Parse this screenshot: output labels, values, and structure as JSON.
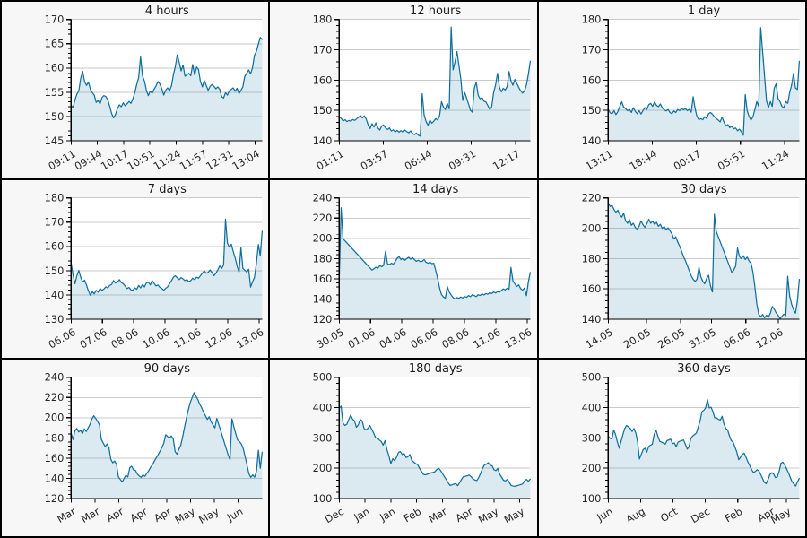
{
  "theme": {
    "page_bg": "#f7f7f7",
    "plot_bg": "#ffffff",
    "border_color": "#000000",
    "line_color": "#0f6f9e",
    "fill_color": "rgba(15,111,158,0.15)",
    "grid_color": "#cbcbcb",
    "tick_color": "#000000",
    "text_color": "#262626"
  },
  "chart_data": [
    {
      "type": "area",
      "title": "4 hours",
      "ylim": [
        145,
        170
      ],
      "ytick_step": 5,
      "grid": true,
      "legend": "none",
      "xticks": [
        {
          "label": "09:11",
          "pos": 0.0
        },
        {
          "label": "09:44",
          "pos": 0.1375
        },
        {
          "label": "10:17",
          "pos": 0.275
        },
        {
          "label": "10:51",
          "pos": 0.4125
        },
        {
          "label": "11:24",
          "pos": 0.55
        },
        {
          "label": "11:57",
          "pos": 0.6875
        },
        {
          "label": "12:31",
          "pos": 0.825
        },
        {
          "label": "13:04",
          "pos": 0.9625
        }
      ],
      "values": [
        152.3,
        151.8,
        153.4,
        154.6,
        155.3,
        157.9,
        159.3,
        157.2,
        156.4,
        157.1,
        155.6,
        154.9,
        154.4,
        152.9,
        153.3,
        152.6,
        153.9,
        154.3,
        154.1,
        153.4,
        152.1,
        150.6,
        149.7,
        150.4,
        151.6,
        152.4,
        152.0,
        152.8,
        152.2,
        152.6,
        153.1,
        152.7,
        153.6,
        154.9,
        156.6,
        158.0,
        162.3,
        158.4,
        157.3,
        155.4,
        154.3,
        155.2,
        154.8,
        155.6,
        156.3,
        157.2,
        156.7,
        155.7,
        154.4,
        155.4,
        155.9,
        155.3,
        156.3,
        158.6,
        160.3,
        162.7,
        161.2,
        159.4,
        160.6,
        158.3,
        158.6,
        158.9,
        158.4,
        160.7,
        158.6,
        160.2,
        159.7,
        157.2,
        156.1,
        157.4,
        156.4,
        155.4,
        156.2,
        156.6,
        156.2,
        155.7,
        156.1,
        155.6,
        154.1,
        153.8,
        154.9,
        154.4,
        155.3,
        155.6,
        155.9,
        155.2,
        155.8,
        154.7,
        155.4,
        156.1,
        158.3,
        158.9,
        159.6,
        158.8,
        160.1,
        162.6,
        163.4,
        164.9,
        166.3,
        165.9
      ]
    },
    {
      "type": "area",
      "title": "12 hours",
      "ylim": [
        140,
        180
      ],
      "ytick_step": 10,
      "grid": true,
      "legend": "none",
      "xticks": [
        {
          "label": "01:11",
          "pos": 0.0
        },
        {
          "label": "03:57",
          "pos": 0.2306
        },
        {
          "label": "06:44",
          "pos": 0.4611
        },
        {
          "label": "09:31",
          "pos": 0.6917
        },
        {
          "label": "12:17",
          "pos": 0.9222
        }
      ],
      "values": [
        148.0,
        147.4,
        146.5,
        146.9,
        146.3,
        146.7,
        146.4,
        147.0,
        146.7,
        147.2,
        147.7,
        148.3,
        147.5,
        148.2,
        147.1,
        145.2,
        144.0,
        145.6,
        144.5,
        145.9,
        144.2,
        143.5,
        144.8,
        145.2,
        144.2,
        143.7,
        144.2,
        143.2,
        143.6,
        142.9,
        143.4,
        142.8,
        143.3,
        142.8,
        143.5,
        143.0,
        142.6,
        143.2,
        142.4,
        142.0,
        142.5,
        141.8,
        141.5,
        155.5,
        148.5,
        146.3,
        145.1,
        146.8,
        145.8,
        146.4,
        147.3,
        146.8,
        148.2,
        152.9,
        151.1,
        150.3,
        152.3,
        150.5,
        177.5,
        163.4,
        165.9,
        169.4,
        165.0,
        160.4,
        153.3,
        155.9,
        154.1,
        152.1,
        150.0,
        149.4,
        157.3,
        159.3,
        155.0,
        153.8,
        154.2,
        153.0,
        152.8,
        151.6,
        150.3,
        151.2,
        155.9,
        158.3,
        162.2,
        157.7,
        156.1,
        157.3,
        156.7,
        157.9,
        162.8,
        159.7,
        158.3,
        160.2,
        158.9,
        157.6,
        156.5,
        155.7,
        156.4,
        158.4,
        161.9,
        166.2
      ]
    },
    {
      "type": "area",
      "title": "1 day",
      "ylim": [
        140,
        180
      ],
      "ytick_step": 10,
      "grid": true,
      "legend": "none",
      "xticks": [
        {
          "label": "13:11",
          "pos": 0.0
        },
        {
          "label": "18:44",
          "pos": 0.2306
        },
        {
          "label": "00:17",
          "pos": 0.4611
        },
        {
          "label": "05:51",
          "pos": 0.6917
        },
        {
          "label": "11:24",
          "pos": 0.9222
        }
      ],
      "values": [
        150.4,
        149.2,
        148.9,
        149.9,
        148.6,
        149.6,
        151.3,
        152.8,
        151.1,
        150.6,
        149.9,
        150.3,
        149.3,
        150.9,
        149.7,
        148.9,
        149.9,
        148.8,
        149.9,
        150.9,
        150.3,
        151.9,
        152.3,
        151.3,
        152.7,
        151.7,
        151.2,
        152.1,
        150.9,
        150.2,
        149.8,
        150.3,
        149.3,
        148.9,
        149.8,
        149.3,
        150.3,
        149.9,
        150.6,
        150.2,
        150.6,
        149.9,
        150.3,
        149.4,
        154.5,
        150.7,
        147.9,
        146.9,
        147.3,
        146.9,
        147.9,
        147.3,
        148.9,
        149.3,
        148.7,
        147.9,
        147.3,
        146.8,
        146.2,
        147.8,
        146.1,
        144.9,
        145.3,
        144.3,
        144.8,
        143.9,
        144.2,
        143.3,
        143.8,
        142.9,
        141.8,
        155.2,
        149.9,
        147.9,
        146.8,
        147.9,
        150.3,
        152.9,
        151.3,
        177.3,
        169.4,
        161.3,
        153.2,
        150.9,
        152.9,
        151.3,
        157.3,
        158.8,
        153.9,
        152.9,
        151.3,
        150.9,
        152.9,
        152.3,
        155.9,
        158.3,
        162.2,
        157.4,
        156.9,
        166.2
      ]
    },
    {
      "type": "area",
      "title": "7 days",
      "ylim": [
        130,
        180
      ],
      "ytick_step": 10,
      "grid": true,
      "legend": "none",
      "xticks": [
        {
          "label": "06.06",
          "pos": 0.0
        },
        {
          "label": "07.06",
          "pos": 0.164
        },
        {
          "label": "08.06",
          "pos": 0.328
        },
        {
          "label": "10.06",
          "pos": 0.492
        },
        {
          "label": "11.06",
          "pos": 0.656
        },
        {
          "label": "12.06",
          "pos": 0.82
        },
        {
          "label": "13.06",
          "pos": 0.984
        }
      ],
      "values": [
        153.2,
        148.3,
        144.6,
        147.9,
        150.1,
        147.2,
        145.3,
        146.1,
        144.0,
        141.6,
        139.8,
        141.3,
        140.4,
        141.9,
        141.1,
        142.6,
        141.9,
        142.4,
        143.3,
        142.9,
        143.9,
        144.3,
        145.9,
        144.9,
        145.3,
        146.3,
        145.1,
        144.6,
        143.6,
        142.6,
        143.1,
        142.1,
        141.9,
        142.9,
        142.3,
        143.9,
        142.9,
        144.3,
        143.3,
        144.9,
        145.3,
        144.1,
        145.9,
        144.7,
        143.7,
        144.1,
        143.1,
        142.7,
        141.9,
        142.7,
        143.3,
        144.6,
        145.9,
        147.3,
        147.9,
        147.1,
        146.3,
        147.1,
        146.6,
        145.9,
        146.3,
        145.4,
        145.9,
        146.9,
        146.3,
        147.3,
        146.9,
        147.9,
        148.9,
        149.9,
        148.9,
        149.3,
        150.3,
        149.2,
        147.9,
        148.9,
        150.3,
        151.9,
        150.9,
        152.3,
        171.2,
        161.3,
        159.7,
        160.9,
        157.9,
        155.3,
        151.9,
        149.4,
        159.5,
        150.9,
        150.2,
        149.4,
        150.6,
        143.2,
        145.4,
        147.2,
        152.9,
        160.8,
        156.2,
        166.2
      ]
    },
    {
      "type": "area",
      "title": "14 days",
      "ylim": [
        120,
        240
      ],
      "ytick_step": 20,
      "grid": true,
      "legend": "none",
      "xticks": [
        {
          "label": "30.05",
          "pos": 0.0
        },
        {
          "label": "01.06",
          "pos": 0.164
        },
        {
          "label": "04.06",
          "pos": 0.328
        },
        {
          "label": "06.06",
          "pos": 0.492
        },
        {
          "label": "08.06",
          "pos": 0.656
        },
        {
          "label": "11.06",
          "pos": 0.82
        },
        {
          "label": "13.06",
          "pos": 0.984
        }
      ],
      "values": [
        158.2,
        230.2,
        199.5,
        197.4,
        195.4,
        193.3,
        191.2,
        189.2,
        187.1,
        185.0,
        183.0,
        180.9,
        178.8,
        176.8,
        174.7,
        172.6,
        170.6,
        168.5,
        169.9,
        171.3,
        170.4,
        172.9,
        171.9,
        173.3,
        187.2,
        174.9,
        173.9,
        175.3,
        174.4,
        176.9,
        180.3,
        181.9,
        178.9,
        180.3,
        178.3,
        179.9,
        181.3,
        179.3,
        180.9,
        178.9,
        177.3,
        178.3,
        176.9,
        177.3,
        178.9,
        176.3,
        175.3,
        176.3,
        174.9,
        175.3,
        168.2,
        160.3,
        150.9,
        144.3,
        141.9,
        140.6,
        152.2,
        146.9,
        143.9,
        141.3,
        139.9,
        141.3,
        140.6,
        141.9,
        140.9,
        142.3,
        141.6,
        143.3,
        142.3,
        144.3,
        143.3,
        142.3,
        144.1,
        143.4,
        144.9,
        143.9,
        145.3,
        144.6,
        146.3,
        145.3,
        146.9,
        145.9,
        147.3,
        146.6,
        148.3,
        149.9,
        148.9,
        150.6,
        149.6,
        171.2,
        157.9,
        154.9,
        152.3,
        153.9,
        150.3,
        148.6,
        150.9,
        143.2,
        156.9,
        166.2
      ]
    },
    {
      "type": "area",
      "title": "30 days",
      "ylim": [
        140,
        220
      ],
      "ytick_step": 20,
      "grid": true,
      "legend": "none",
      "xticks": [
        {
          "label": "14.05",
          "pos": 0.0
        },
        {
          "label": "20.05",
          "pos": 0.199
        },
        {
          "label": "26.05",
          "pos": 0.378
        },
        {
          "label": "31.05",
          "pos": 0.541
        },
        {
          "label": "06.06",
          "pos": 0.72
        },
        {
          "label": "12.06",
          "pos": 0.891
        }
      ],
      "values": [
        216.9,
        214.3,
        215.1,
        212.3,
        210.6,
        211.9,
        208.9,
        207.3,
        209.9,
        204.9,
        203.3,
        205.6,
        201.9,
        203.3,
        200.6,
        199.3,
        201.3,
        204.9,
        202.3,
        200.6,
        202.9,
        205.9,
        203.3,
        204.6,
        202.6,
        203.9,
        201.3,
        202.6,
        199.9,
        201.1,
        198.9,
        200.3,
        198.3,
        196.3,
        192.9,
        194.3,
        190.9,
        188.3,
        184.9,
        181.3,
        178.6,
        175.3,
        171.9,
        168.6,
        166.3,
        164.9,
        166.3,
        174.3,
        167.9,
        164.9,
        163.3,
        166.9,
        168.9,
        161.9,
        157.9,
        209.2,
        197.8,
        194.4,
        191.1,
        187.7,
        184.4,
        181.0,
        177.7,
        174.3,
        170.9,
        172.3,
        174.9,
        186.9,
        181.3,
        179.9,
        181.9,
        179.3,
        180.9,
        178.3,
        176.9,
        170.9,
        161.3,
        149.9,
        143.3,
        141.6,
        143.1,
        140.9,
        142.6,
        141.3,
        143.9,
        148.3,
        146.6,
        144.1,
        142.6,
        140.3,
        141.9,
        143.3,
        142.3,
        168.3,
        155.3,
        149.9,
        146.3,
        143.9,
        151.9,
        166.2
      ]
    },
    {
      "type": "area",
      "title": "90 days",
      "ylim": [
        120,
        240
      ],
      "ytick_step": 20,
      "grid": true,
      "legend": "none",
      "xticks": [
        {
          "label": "Mar",
          "pos": 0.0
        },
        {
          "label": "Mar",
          "pos": 0.125
        },
        {
          "label": "Apr",
          "pos": 0.25
        },
        {
          "label": "Apr",
          "pos": 0.375
        },
        {
          "label": "Apr",
          "pos": 0.5
        },
        {
          "label": "May",
          "pos": 0.625
        },
        {
          "label": "May",
          "pos": 0.75
        },
        {
          "label": "Jun",
          "pos": 0.875
        }
      ],
      "values": [
        184.9,
        178.3,
        186.9,
        189.3,
        185.9,
        187.3,
        184.3,
        188.9,
        186.3,
        189.9,
        193.3,
        198.9,
        201.9,
        199.3,
        196.3,
        192.9,
        178.3,
        174.9,
        171.3,
        173.9,
        170.3,
        158.9,
        155.3,
        157.1,
        153.9,
        141.3,
        138.9,
        136.3,
        139.9,
        142.9,
        141.3,
        150.3,
        151.9,
        148.3,
        147.9,
        144.3,
        142.3,
        140.9,
        143.3,
        141.9,
        144.9,
        147.3,
        150.9,
        153.3,
        156.9,
        160.3,
        163.3,
        166.9,
        170.3,
        174.9,
        183.1,
        181.3,
        179.9,
        181.9,
        178.9,
        166.3,
        163.9,
        168.9,
        172.9,
        181.3,
        190.9,
        199.9,
        208.3,
        215.3,
        219.9,
        224.8,
        221.3,
        217.9,
        213.3,
        209.9,
        205.3,
        201.9,
        198.3,
        200.9,
        195.9,
        192.9,
        189.9,
        199.3,
        193.3,
        187.9,
        181.3,
        175.3,
        169.3,
        163.3,
        158.3,
        198.8,
        191.3,
        184.3,
        177.9,
        176.3,
        173.9,
        169.3,
        161.3,
        152.9,
        144.3,
        140.9,
        143.3,
        141.1,
        146.9,
        167.8,
        149.9,
        165.9
      ]
    },
    {
      "type": "area",
      "title": "180 days",
      "ylim": [
        100,
        500
      ],
      "ytick_step": 100,
      "grid": true,
      "legend": "none",
      "xticks": [
        {
          "label": "Dec",
          "pos": 0.0
        },
        {
          "label": "Jan",
          "pos": 0.135
        },
        {
          "label": "Jan",
          "pos": 0.27
        },
        {
          "label": "Feb",
          "pos": 0.405
        },
        {
          "label": "Mar",
          "pos": 0.54
        },
        {
          "label": "Apr",
          "pos": 0.675
        },
        {
          "label": "May",
          "pos": 0.81
        },
        {
          "label": "May",
          "pos": 0.945
        }
      ],
      "values": [
        398,
        405,
        348,
        341,
        345,
        361,
        375,
        362,
        356,
        335,
        343,
        361,
        356,
        331,
        326,
        331,
        341,
        329,
        316,
        301,
        299,
        293,
        288,
        276,
        291,
        261,
        241,
        215,
        231,
        225,
        236,
        252,
        255,
        245,
        248,
        235,
        238,
        245,
        226,
        220,
        215,
        212,
        200,
        190,
        180,
        178,
        180,
        182,
        185,
        186,
        188,
        195,
        200,
        193,
        183,
        172,
        163,
        152,
        143,
        145,
        147,
        149,
        142,
        152,
        163,
        172,
        173,
        175,
        177,
        172,
        165,
        161,
        159,
        169,
        183,
        199,
        211,
        213,
        218,
        210,
        208,
        195,
        192,
        199,
        180,
        170,
        160,
        158,
        163,
        153,
        143,
        141,
        140,
        142,
        144,
        146,
        148,
        158,
        163,
        157,
        164
      ]
    },
    {
      "type": "area",
      "title": "360 days",
      "ylim": [
        100,
        500
      ],
      "ytick_step": 100,
      "grid": true,
      "legend": "none",
      "xticks": [
        {
          "label": "Jun",
          "pos": 0.0
        },
        {
          "label": "Aug",
          "pos": 0.169
        },
        {
          "label": "Oct",
          "pos": 0.339
        },
        {
          "label": "Dec",
          "pos": 0.508
        },
        {
          "label": "Feb",
          "pos": 0.678
        },
        {
          "label": "Apr",
          "pos": 0.847
        },
        {
          "label": "May",
          "pos": 0.932
        }
      ],
      "values": [
        306,
        299,
        296,
        326,
        311,
        286,
        266,
        289,
        311,
        331,
        341,
        336,
        331,
        321,
        331,
        316,
        286,
        230,
        246,
        261,
        266,
        253,
        271,
        276,
        279,
        311,
        326,
        306,
        289,
        286,
        283,
        279,
        291,
        293,
        296,
        281,
        283,
        271,
        286,
        289,
        291,
        293,
        279,
        263,
        271,
        299,
        306,
        311,
        316,
        336,
        356,
        386,
        391,
        399,
        426,
        399,
        401,
        386,
        366,
        366,
        361,
        359,
        371,
        346,
        331,
        326,
        306,
        291,
        286,
        269,
        253,
        228,
        236,
        246,
        249,
        236,
        221,
        209,
        196,
        186,
        189,
        195,
        191,
        179,
        166,
        153,
        149,
        163,
        179,
        185,
        181,
        169,
        171,
        189,
        216,
        220,
        211,
        199,
        186,
        171,
        156,
        148,
        141,
        155,
        166
      ]
    }
  ]
}
